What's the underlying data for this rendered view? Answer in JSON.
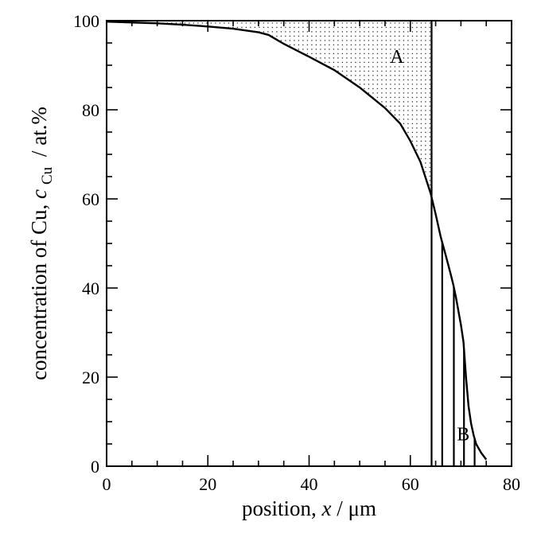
{
  "chart_data": {
    "type": "line",
    "xlabel": {
      "prefix": "position, ",
      "var": "x",
      "suffix": " / μm"
    },
    "ylabel": {
      "prefix": "concentration of Cu, ",
      "var": "c",
      "sub": "Cu",
      "suffix": " / at.%"
    },
    "xlim": [
      0,
      80
    ],
    "ylim": [
      0,
      100
    ],
    "xticks": [
      0,
      20,
      40,
      60,
      80
    ],
    "yticks": [
      0,
      20,
      40,
      60,
      80,
      100
    ],
    "grid": false,
    "series": [
      {
        "x": [
          0,
          5,
          10,
          15,
          20,
          25,
          30,
          32,
          35,
          40,
          45,
          50,
          55,
          58,
          60,
          62,
          63,
          64,
          65,
          66,
          67,
          68,
          68.5,
          69,
          70,
          70.5,
          71,
          71.5,
          72,
          72.5,
          73,
          74,
          75
        ],
        "y": [
          99.8,
          99.6,
          99.4,
          99.1,
          98.7,
          98.2,
          97.4,
          96.8,
          94.8,
          91.9,
          88.9,
          85.0,
          80.4,
          76.9,
          73.0,
          68.3,
          64.8,
          61.3,
          56.6,
          51.5,
          47.3,
          43.0,
          40.7,
          38.0,
          31.7,
          27.9,
          20.0,
          13.5,
          9.6,
          7.0,
          5.0,
          3.0,
          1.5
        ]
      }
    ],
    "vertical_lines_x": [
      64.2,
      66.3,
      68.6,
      70.6,
      72.7
    ],
    "shaded_region": {
      "name": "A",
      "x_right": 64.2,
      "pattern": "dotted"
    },
    "annotations": [
      {
        "text": "A",
        "x": 56,
        "y": 90.5
      },
      {
        "text": "B",
        "x": 69.2,
        "y": 5.8
      }
    ]
  }
}
